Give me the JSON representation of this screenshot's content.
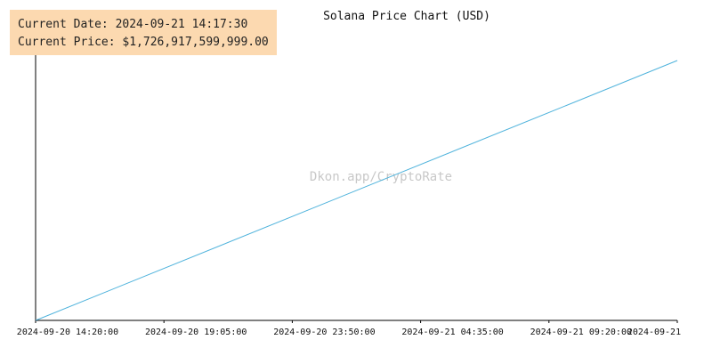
{
  "info": {
    "date_text": "Current Date: 2024-09-21 14:17:30",
    "price_text": "Current Price: $1,726,917,599,999.00"
  },
  "watermark": "Dkon.app/CryptoRate",
  "colors": {
    "line": "#4fb3dc",
    "axis": "#000000",
    "info_bg": "#fcd9b0",
    "watermark": "#c8c8c8"
  },
  "chart_data": {
    "type": "line",
    "title": "Solana Price Chart (USD)",
    "xlabel": "",
    "ylabel": "",
    "grid": false,
    "x_ticks": [
      "2024-09-20 14:20:00",
      "2024-09-20 19:05:00",
      "2024-09-20 23:50:00",
      "2024-09-21 04:35:00",
      "2024-09-21 09:20:00",
      "2024-09-21"
    ],
    "series": [
      {
        "x": [
          "2024-09-20 14:20:00",
          "2024-09-21 14:05:00"
        ],
        "values": [
          0,
          1
        ]
      }
    ],
    "ylim": [
      0,
      1.13
    ]
  }
}
